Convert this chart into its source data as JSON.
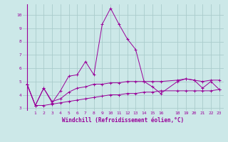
{
  "xlabel": "Windchill (Refroidissement éolien,°C)",
  "ylabel": "",
  "background_color": "#cce8e8",
  "grid_color": "#aacccc",
  "line_color": "#990099",
  "xlim": [
    -0.5,
    23.5
  ],
  "ylim": [
    2.8,
    10.8
  ],
  "yticks": [
    3,
    4,
    5,
    6,
    7,
    8,
    9,
    10
  ],
  "xticks": [
    1,
    2,
    3,
    4,
    5,
    6,
    7,
    8,
    9,
    10,
    11,
    12,
    13,
    14,
    15,
    16,
    18,
    19,
    20,
    21,
    22,
    23
  ],
  "line1_x": [
    0,
    1,
    2,
    3,
    4,
    5,
    6,
    7,
    8,
    9,
    10,
    11,
    12,
    13,
    14,
    15,
    16,
    18,
    19,
    20,
    21,
    22,
    23
  ],
  "line1_y": [
    4.8,
    3.2,
    4.5,
    3.4,
    4.3,
    5.4,
    5.5,
    6.5,
    5.5,
    9.3,
    10.5,
    9.3,
    8.2,
    7.4,
    5.0,
    4.6,
    4.1,
    5.0,
    5.2,
    5.1,
    4.5,
    5.0,
    4.4
  ],
  "line2_x": [
    0,
    1,
    2,
    3,
    4,
    5,
    6,
    7,
    8,
    9,
    10,
    11,
    12,
    13,
    14,
    15,
    16,
    18,
    19,
    20,
    21,
    22,
    23
  ],
  "line2_y": [
    4.8,
    3.2,
    4.5,
    3.5,
    3.7,
    4.2,
    4.5,
    4.6,
    4.8,
    4.8,
    4.9,
    4.9,
    5.0,
    5.0,
    5.0,
    5.0,
    5.0,
    5.1,
    5.2,
    5.1,
    5.0,
    5.1,
    5.1
  ],
  "line3_x": [
    0,
    1,
    2,
    3,
    4,
    5,
    6,
    7,
    8,
    9,
    10,
    11,
    12,
    13,
    14,
    15,
    16,
    18,
    19,
    20,
    21,
    22,
    23
  ],
  "line3_y": [
    4.8,
    3.2,
    3.2,
    3.3,
    3.4,
    3.5,
    3.6,
    3.7,
    3.8,
    3.9,
    4.0,
    4.0,
    4.1,
    4.1,
    4.2,
    4.2,
    4.3,
    4.3,
    4.3,
    4.3,
    4.3,
    4.3,
    4.4
  ],
  "vline_x": 0,
  "font_size_ticks": 4.5,
  "font_size_xlabel": 5.5
}
